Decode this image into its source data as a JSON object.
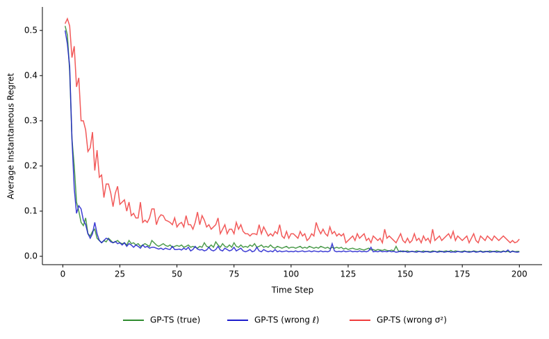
{
  "chart_data": {
    "type": "line",
    "xlabel": "Time Step",
    "ylabel": "Average Instantaneous Regret",
    "xlim": [
      -8.95,
      209.95
    ],
    "ylim": [
      -0.0185,
      0.552
    ],
    "xticks": [
      0,
      25,
      50,
      75,
      100,
      125,
      150,
      175,
      200
    ],
    "yticks": [
      {
        "value": 0,
        "label": "0.0"
      },
      0.1,
      0.2,
      0.3,
      0.4,
      0.5
    ],
    "legend": "lower center",
    "x": [
      1,
      2,
      3,
      4,
      5,
      6,
      7,
      8,
      9,
      10,
      11,
      12,
      13,
      14,
      15,
      16,
      17,
      18,
      19,
      20,
      21,
      22,
      23,
      24,
      25,
      26,
      27,
      28,
      29,
      30,
      31,
      32,
      33,
      34,
      35,
      36,
      37,
      38,
      39,
      40,
      41,
      42,
      43,
      44,
      45,
      46,
      47,
      48,
      49,
      50,
      51,
      52,
      53,
      54,
      55,
      56,
      57,
      58,
      59,
      60,
      61,
      62,
      63,
      64,
      65,
      66,
      67,
      68,
      69,
      70,
      71,
      72,
      73,
      74,
      75,
      76,
      77,
      78,
      79,
      80,
      81,
      82,
      83,
      84,
      85,
      86,
      87,
      88,
      89,
      90,
      91,
      92,
      93,
      94,
      95,
      96,
      97,
      98,
      99,
      100,
      101,
      102,
      103,
      104,
      105,
      106,
      107,
      108,
      109,
      110,
      111,
      112,
      113,
      114,
      115,
      116,
      117,
      118,
      119,
      120,
      121,
      122,
      123,
      124,
      125,
      126,
      127,
      128,
      129,
      130,
      131,
      132,
      133,
      134,
      135,
      136,
      137,
      138,
      139,
      140,
      141,
      142,
      143,
      144,
      145,
      146,
      147,
      148,
      149,
      150,
      151,
      152,
      153,
      154,
      155,
      156,
      157,
      158,
      159,
      160,
      161,
      162,
      163,
      164,
      165,
      166,
      167,
      168,
      169,
      170,
      171,
      172,
      173,
      174,
      175,
      176,
      177,
      178,
      179,
      180,
      181,
      182,
      183,
      184,
      185,
      186,
      187,
      188,
      189,
      190,
      191,
      192,
      193,
      194,
      195,
      196,
      197,
      198,
      199,
      200
    ],
    "series": [
      {
        "name": "GP-TS (true)",
        "color": "#2e8b2e",
        "values": [
          0.51,
          0.49,
          0.41,
          0.26,
          0.2,
          0.12,
          0.1,
          0.075,
          0.068,
          0.085,
          0.05,
          0.045,
          0.055,
          0.06,
          0.04,
          0.035,
          0.03,
          0.035,
          0.032,
          0.04,
          0.035,
          0.03,
          0.032,
          0.035,
          0.03,
          0.028,
          0.03,
          0.025,
          0.035,
          0.028,
          0.03,
          0.025,
          0.028,
          0.022,
          0.025,
          0.028,
          0.025,
          0.022,
          0.035,
          0.03,
          0.025,
          0.022,
          0.025,
          0.028,
          0.024,
          0.022,
          0.025,
          0.02,
          0.022,
          0.024,
          0.022,
          0.025,
          0.02,
          0.022,
          0.025,
          0.02,
          0.022,
          0.02,
          0.018,
          0.022,
          0.02,
          0.03,
          0.022,
          0.02,
          0.025,
          0.02,
          0.032,
          0.025,
          0.02,
          0.028,
          0.022,
          0.02,
          0.025,
          0.02,
          0.03,
          0.022,
          0.02,
          0.025,
          0.02,
          0.022,
          0.02,
          0.025,
          0.022,
          0.028,
          0.02,
          0.022,
          0.025,
          0.02,
          0.022,
          0.02,
          0.025,
          0.02,
          0.018,
          0.022,
          0.02,
          0.018,
          0.02,
          0.022,
          0.018,
          0.02,
          0.02,
          0.018,
          0.02,
          0.022,
          0.018,
          0.02,
          0.018,
          0.022,
          0.02,
          0.018,
          0.02,
          0.018,
          0.022,
          0.02,
          0.018,
          0.02,
          0.017,
          0.02,
          0.018,
          0.02,
          0.018,
          0.02,
          0.016,
          0.018,
          0.015,
          0.017,
          0.018,
          0.016,
          0.015,
          0.017,
          0.015,
          0.014,
          0.016,
          0.018,
          0.014,
          0.015,
          0.013,
          0.015,
          0.014,
          0.013,
          0.015,
          0.013,
          0.012,
          0.014,
          0.012,
          0.022,
          0.012,
          0.01,
          0.012,
          0.011,
          0.012,
          0.01,
          0.011,
          0.01,
          0.012,
          0.011,
          0.01,
          0.012,
          0.01,
          0.011,
          0.01,
          0.012,
          0.011,
          0.01,
          0.012,
          0.01,
          0.011,
          0.012,
          0.01,
          0.013,
          0.01,
          0.012,
          0.011,
          0.01,
          0.011,
          0.012,
          0.01,
          0.011,
          0.01,
          0.012,
          0.011,
          0.01,
          0.012,
          0.01,
          0.011,
          0.01,
          0.012,
          0.011,
          0.01,
          0.012,
          0.011,
          0.01,
          0.012,
          0.01,
          0.011,
          0.009,
          0.012,
          0.01,
          0.011,
          0.011
        ]
      },
      {
        "name": "GP-TS (wrong ℓ)",
        "color": "#1c1ccc",
        "values": [
          0.5,
          0.47,
          0.42,
          0.26,
          0.15,
          0.095,
          0.112,
          0.105,
          0.08,
          0.07,
          0.05,
          0.04,
          0.05,
          0.075,
          0.05,
          0.035,
          0.03,
          0.035,
          0.04,
          0.038,
          0.032,
          0.03,
          0.033,
          0.028,
          0.03,
          0.025,
          0.03,
          0.022,
          0.028,
          0.025,
          0.02,
          0.025,
          0.022,
          0.018,
          0.025,
          0.02,
          0.022,
          0.018,
          0.02,
          0.02,
          0.018,
          0.016,
          0.018,
          0.015,
          0.018,
          0.016,
          0.015,
          0.022,
          0.015,
          0.015,
          0.016,
          0.014,
          0.018,
          0.015,
          0.02,
          0.012,
          0.015,
          0.022,
          0.016,
          0.014,
          0.015,
          0.012,
          0.014,
          0.02,
          0.014,
          0.012,
          0.015,
          0.022,
          0.014,
          0.012,
          0.018,
          0.015,
          0.012,
          0.014,
          0.02,
          0.012,
          0.015,
          0.018,
          0.012,
          0.01,
          0.012,
          0.015,
          0.01,
          0.012,
          0.02,
          0.012,
          0.01,
          0.015,
          0.012,
          0.01,
          0.012,
          0.01,
          0.015,
          0.01,
          0.012,
          0.01,
          0.011,
          0.012,
          0.01,
          0.011,
          0.01,
          0.012,
          0.01,
          0.011,
          0.012,
          0.01,
          0.011,
          0.012,
          0.01,
          0.012,
          0.011,
          0.01,
          0.012,
          0.01,
          0.011,
          0.01,
          0.012,
          0.028,
          0.012,
          0.01,
          0.011,
          0.01,
          0.012,
          0.01,
          0.011,
          0.012,
          0.01,
          0.011,
          0.01,
          0.012,
          0.01,
          0.011,
          0.01,
          0.012,
          0.02,
          0.01,
          0.011,
          0.01,
          0.012,
          0.01,
          0.011,
          0.01,
          0.012,
          0.01,
          0.011,
          0.009,
          0.01,
          0.012,
          0.01,
          0.011,
          0.009,
          0.01,
          0.011,
          0.01,
          0.009,
          0.011,
          0.01,
          0.009,
          0.011,
          0.01,
          0.009,
          0.01,
          0.011,
          0.009,
          0.01,
          0.011,
          0.009,
          0.01,
          0.011,
          0.009,
          0.01,
          0.009,
          0.011,
          0.01,
          0.009,
          0.011,
          0.01,
          0.009,
          0.01,
          0.011,
          0.009,
          0.01,
          0.011,
          0.009,
          0.01,
          0.011,
          0.009,
          0.01,
          0.011,
          0.009,
          0.01,
          0.009,
          0.011,
          0.01,
          0.014,
          0.009,
          0.011,
          0.01,
          0.009,
          0.01
        ]
      },
      {
        "name": "GP-TS (wrong σ²)",
        "color": "#f03c3c",
        "values": [
          0.515,
          0.526,
          0.51,
          0.44,
          0.465,
          0.375,
          0.395,
          0.3,
          0.3,
          0.28,
          0.232,
          0.24,
          0.275,
          0.19,
          0.235,
          0.175,
          0.18,
          0.13,
          0.16,
          0.16,
          0.14,
          0.11,
          0.14,
          0.155,
          0.115,
          0.12,
          0.125,
          0.1,
          0.12,
          0.09,
          0.095,
          0.085,
          0.085,
          0.12,
          0.075,
          0.08,
          0.075,
          0.085,
          0.105,
          0.105,
          0.07,
          0.085,
          0.092,
          0.09,
          0.08,
          0.078,
          0.075,
          0.07,
          0.085,
          0.065,
          0.072,
          0.075,
          0.065,
          0.09,
          0.07,
          0.07,
          0.06,
          0.075,
          0.098,
          0.07,
          0.09,
          0.08,
          0.065,
          0.07,
          0.06,
          0.065,
          0.07,
          0.085,
          0.05,
          0.06,
          0.07,
          0.05,
          0.06,
          0.06,
          0.05,
          0.075,
          0.06,
          0.07,
          0.055,
          0.05,
          0.05,
          0.045,
          0.05,
          0.05,
          0.048,
          0.07,
          0.05,
          0.065,
          0.055,
          0.045,
          0.05,
          0.045,
          0.055,
          0.05,
          0.07,
          0.045,
          0.04,
          0.055,
          0.04,
          0.05,
          0.05,
          0.045,
          0.04,
          0.055,
          0.045,
          0.05,
          0.035,
          0.04,
          0.05,
          0.045,
          0.075,
          0.06,
          0.05,
          0.06,
          0.05,
          0.045,
          0.065,
          0.05,
          0.055,
          0.045,
          0.05,
          0.045,
          0.05,
          0.03,
          0.035,
          0.04,
          0.045,
          0.035,
          0.05,
          0.04,
          0.045,
          0.05,
          0.035,
          0.04,
          0.03,
          0.045,
          0.04,
          0.035,
          0.04,
          0.03,
          0.06,
          0.04,
          0.045,
          0.04,
          0.035,
          0.03,
          0.04,
          0.05,
          0.035,
          0.03,
          0.04,
          0.03,
          0.035,
          0.05,
          0.035,
          0.04,
          0.03,
          0.045,
          0.035,
          0.04,
          0.03,
          0.06,
          0.035,
          0.04,
          0.045,
          0.035,
          0.04,
          0.045,
          0.05,
          0.04,
          0.055,
          0.035,
          0.045,
          0.04,
          0.035,
          0.04,
          0.045,
          0.03,
          0.04,
          0.05,
          0.035,
          0.03,
          0.045,
          0.04,
          0.035,
          0.045,
          0.04,
          0.035,
          0.045,
          0.04,
          0.035,
          0.04,
          0.045,
          0.04,
          0.035,
          0.03,
          0.035,
          0.03,
          0.032,
          0.038
        ]
      }
    ]
  }
}
